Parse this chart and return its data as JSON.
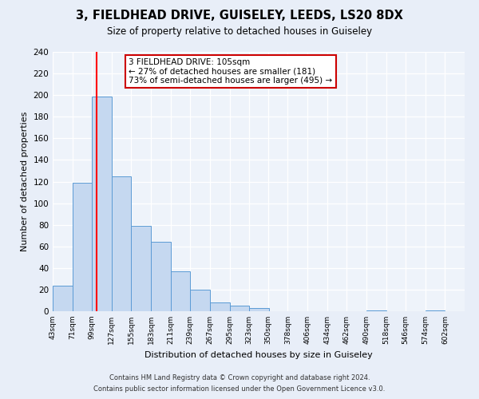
{
  "title": "3, FIELDHEAD DRIVE, GUISELEY, LEEDS, LS20 8DX",
  "subtitle": "Size of property relative to detached houses in Guiseley",
  "xlabel": "Distribution of detached houses by size in Guiseley",
  "ylabel": "Number of detached properties",
  "bin_labels": [
    "43sqm",
    "71sqm",
    "99sqm",
    "127sqm",
    "155sqm",
    "183sqm",
    "211sqm",
    "239sqm",
    "267sqm",
    "295sqm",
    "323sqm",
    "350sqm",
    "378sqm",
    "406sqm",
    "434sqm",
    "462sqm",
    "490sqm",
    "518sqm",
    "546sqm",
    "574sqm",
    "602sqm"
  ],
  "bin_edges": [
    43,
    71,
    99,
    127,
    155,
    183,
    211,
    239,
    267,
    295,
    323,
    350,
    378,
    406,
    434,
    462,
    490,
    518,
    546,
    574,
    602
  ],
  "bar_heights": [
    24,
    119,
    199,
    125,
    79,
    64,
    37,
    20,
    8,
    5,
    3,
    0,
    0,
    0,
    0,
    0,
    1,
    0,
    0,
    1,
    0
  ],
  "bar_color": "#c5d8f0",
  "bar_edge_color": "#5b9bd5",
  "red_line_x": 105,
  "ylim": [
    0,
    240
  ],
  "yticks": [
    0,
    20,
    40,
    60,
    80,
    100,
    120,
    140,
    160,
    180,
    200,
    220,
    240
  ],
  "annotation_title": "3 FIELDHEAD DRIVE: 105sqm",
  "annotation_line1": "← 27% of detached houses are smaller (181)",
  "annotation_line2": "73% of semi-detached houses are larger (495) →",
  "annotation_box_color": "#ffffff",
  "annotation_box_edge_color": "#cc0000",
  "footer_line1": "Contains HM Land Registry data © Crown copyright and database right 2024.",
  "footer_line2": "Contains public sector information licensed under the Open Government Licence v3.0.",
  "background_color": "#e8eef8",
  "plot_bg_color": "#eef3fa"
}
